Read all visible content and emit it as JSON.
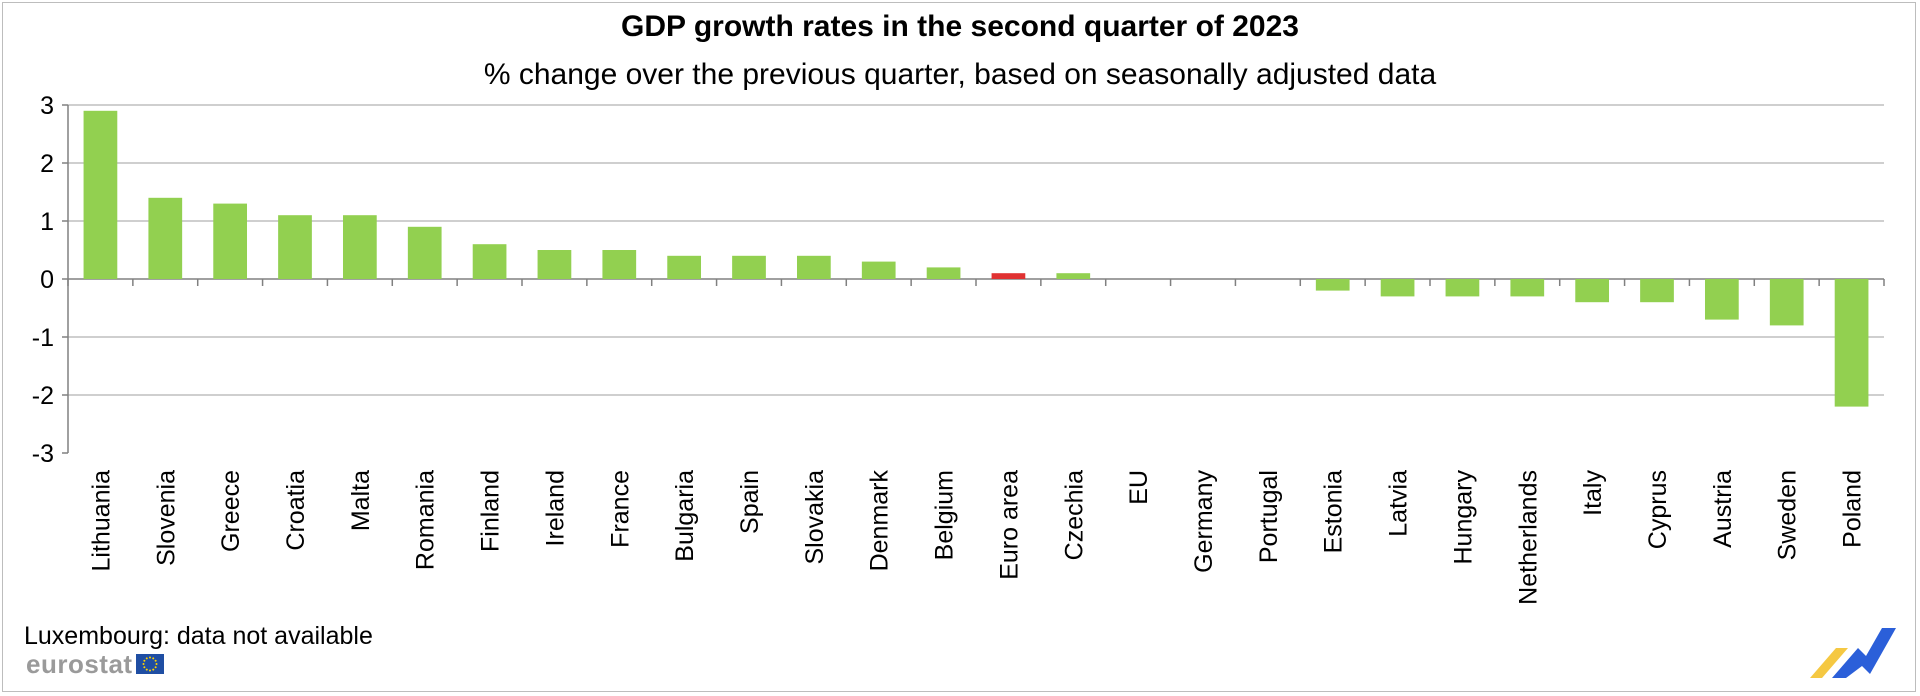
{
  "header": {
    "title": "GDP growth rates in the second quarter of 2023",
    "subtitle": "% change over the previous quarter, based on seasonally adjusted data"
  },
  "footer": {
    "note": "Luxembourg: data not available",
    "logo_text": "eurostat"
  },
  "colors": {
    "bar": "#92d050",
    "highlight": "#e03232",
    "grid": "#bfbfbf",
    "axis": "#808080",
    "flag_blue": "#1f4ea3",
    "flag_star": "#ffd200",
    "mark_blue": "#2b5fd9",
    "mark_yellow": "#f5c842"
  },
  "chart_data": {
    "type": "bar",
    "title": "GDP growth rates in the second quarter of 2023",
    "subtitle": "% change over the previous quarter, based on seasonally adjusted data",
    "xlabel": "",
    "ylabel": "",
    "ylim": [
      -3,
      3
    ],
    "yticks": [
      3,
      2,
      1,
      0,
      -1,
      -2,
      -3
    ],
    "grid": true,
    "legend": "none",
    "highlight_category": "Euro area",
    "categories": [
      "Lithuania",
      "Slovenia",
      "Greece",
      "Croatia",
      "Malta",
      "Romania",
      "Finland",
      "Ireland",
      "France",
      "Bulgaria",
      "Spain",
      "Slovakia",
      "Denmark",
      "Belgium",
      "Euro area",
      "Czechia",
      "EU",
      "Germany",
      "Portugal",
      "Estonia",
      "Latvia",
      "Hungary",
      "Netherlands",
      "Italy",
      "Cyprus",
      "Austria",
      "Sweden",
      "Poland"
    ],
    "values": [
      2.9,
      1.4,
      1.3,
      1.1,
      1.1,
      0.9,
      0.6,
      0.5,
      0.5,
      0.4,
      0.4,
      0.4,
      0.3,
      0.2,
      0.1,
      0.1,
      0.0,
      0.0,
      0.0,
      -0.2,
      -0.3,
      -0.3,
      -0.3,
      -0.4,
      -0.4,
      -0.7,
      -0.8,
      -2.2
    ]
  }
}
